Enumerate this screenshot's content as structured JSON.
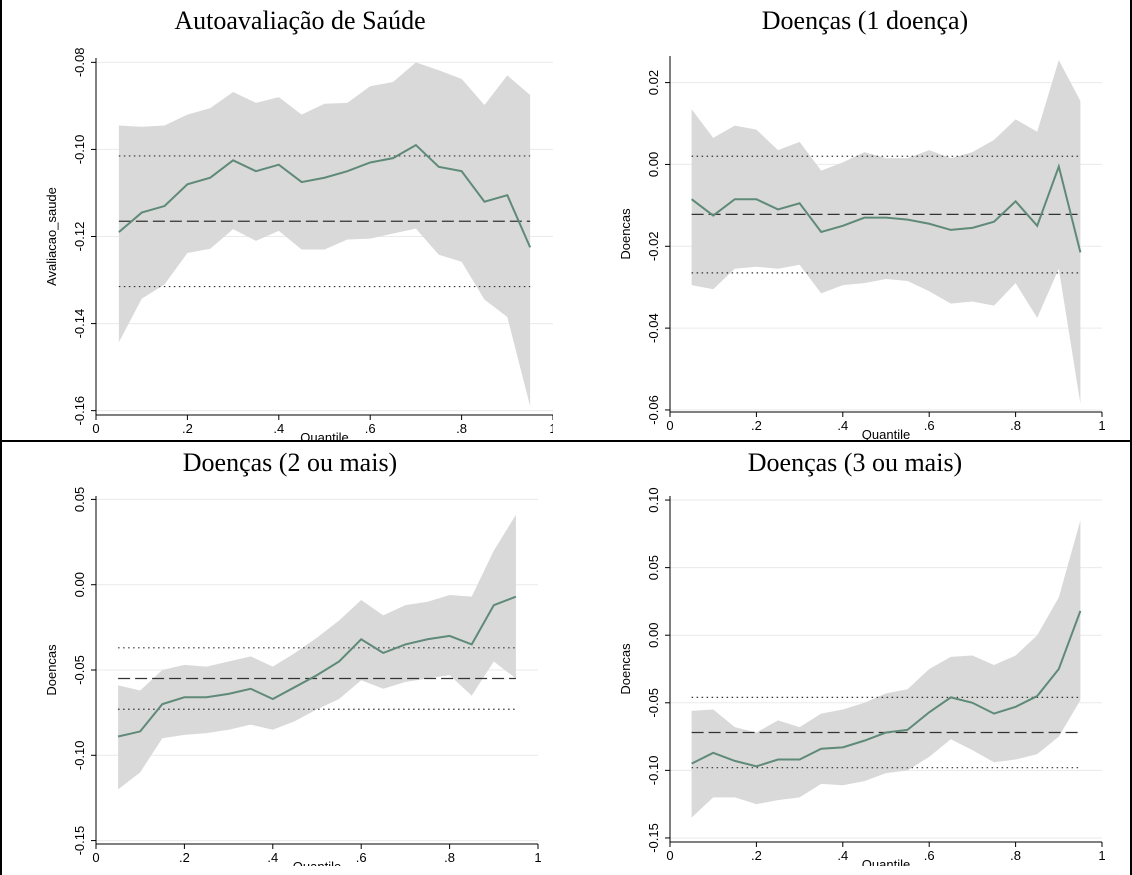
{
  "colors": {
    "band": "#d9d9d9",
    "line": "#5f8a78",
    "ref": "#333333",
    "grid": "#eaeaea",
    "axis": "#000000"
  },
  "chart_data": [
    {
      "type": "line",
      "title": "Autoavaliação de Saúde",
      "xlabel": "Quantile",
      "ylabel": "Avaliacao_saude",
      "xlim": [
        0,
        1
      ],
      "ylim": [
        -0.161,
        -0.079
      ],
      "xticks": [
        0,
        0.2,
        0.4,
        0.6,
        0.8,
        1
      ],
      "xtick_labels": [
        "0",
        ".2",
        ".4",
        ".6",
        ".8",
        "1"
      ],
      "yticks": [
        -0.08,
        -0.1,
        -0.12,
        -0.14,
        -0.16
      ],
      "ytick_labels": [
        "-0.08",
        "-0.10",
        "-0.12",
        "-0.14",
        "-0.16"
      ],
      "grid": true,
      "x": [
        0.05,
        0.1,
        0.15,
        0.2,
        0.25,
        0.3,
        0.35,
        0.4,
        0.45,
        0.5,
        0.55,
        0.6,
        0.65,
        0.7,
        0.75,
        0.8,
        0.85,
        0.9,
        0.95
      ],
      "coef": [
        -0.119,
        -0.1145,
        -0.113,
        -0.108,
        -0.1065,
        -0.1025,
        -0.105,
        -0.1035,
        -0.1075,
        -0.1065,
        -0.105,
        -0.103,
        -0.102,
        -0.099,
        -0.104,
        -0.105,
        -0.112,
        -0.1105,
        -0.1225
      ],
      "upper": [
        -0.0945,
        -0.0948,
        -0.0945,
        -0.092,
        -0.0905,
        -0.0868,
        -0.0893,
        -0.088,
        -0.092,
        -0.0895,
        -0.0893,
        -0.0855,
        -0.0845,
        -0.08,
        -0.0818,
        -0.0838,
        -0.0898,
        -0.083,
        -0.0875
      ],
      "lower": [
        -0.1443,
        -0.1343,
        -0.131,
        -0.1238,
        -0.1228,
        -0.1183,
        -0.121,
        -0.1187,
        -0.123,
        -0.123,
        -0.1207,
        -0.1205,
        -0.1193,
        -0.1182,
        -0.1242,
        -0.1258,
        -0.1345,
        -0.1385,
        -0.159
      ],
      "ols": -0.1165,
      "ols_ci": [
        -0.1315,
        -0.1015
      ]
    },
    {
      "type": "line",
      "title": "Doenças (1 doença)",
      "xlabel": "Quantile",
      "ylabel": "Doencas",
      "xlim": [
        0,
        1
      ],
      "ylim": [
        -0.0605,
        0.0265
      ],
      "xticks": [
        0,
        0.2,
        0.4,
        0.6,
        0.8,
        1
      ],
      "xtick_labels": [
        "0",
        ".2",
        ".4",
        ".6",
        ".8",
        "1"
      ],
      "yticks": [
        0.02,
        0.0,
        -0.02,
        -0.04,
        -0.06
      ],
      "ytick_labels": [
        "0.02",
        "0.00",
        "-0.02",
        "-0.04",
        "-0.06"
      ],
      "grid": true,
      "x": [
        0.05,
        0.1,
        0.15,
        0.2,
        0.25,
        0.3,
        0.35,
        0.4,
        0.45,
        0.5,
        0.55,
        0.6,
        0.65,
        0.7,
        0.75,
        0.8,
        0.85,
        0.9,
        0.95
      ],
      "coef": [
        -0.0085,
        -0.0125,
        -0.0085,
        -0.0085,
        -0.011,
        -0.0095,
        -0.0165,
        -0.015,
        -0.013,
        -0.013,
        -0.0135,
        -0.0145,
        -0.016,
        -0.0155,
        -0.014,
        -0.009,
        -0.015,
        -0.0005,
        -0.0215
      ],
      "upper": [
        0.0135,
        0.0065,
        0.0095,
        0.0085,
        0.0035,
        0.0055,
        -0.0015,
        0.0005,
        0.003,
        0.0015,
        0.0015,
        0.0035,
        0.0015,
        0.003,
        0.006,
        0.011,
        0.008,
        0.0255,
        0.0155
      ],
      "lower": [
        -0.0295,
        -0.0305,
        -0.0255,
        -0.025,
        -0.0255,
        -0.0245,
        -0.0315,
        -0.0295,
        -0.029,
        -0.028,
        -0.0285,
        -0.031,
        -0.034,
        -0.0335,
        -0.0345,
        -0.029,
        -0.0375,
        -0.0255,
        -0.0585
      ],
      "ols": -0.0122,
      "ols_ci": [
        -0.0265,
        0.002
      ]
    },
    {
      "type": "line",
      "title": "Doenças (2 ou mais)",
      "xlabel": "Quantile",
      "ylabel": "Doencas",
      "xlim": [
        0,
        1
      ],
      "ylim": [
        -0.152,
        0.052
      ],
      "xticks": [
        0,
        0.2,
        0.4,
        0.6,
        0.8,
        1
      ],
      "xtick_labels": [
        "0",
        ".2",
        ".4",
        ".6",
        ".8",
        "1"
      ],
      "yticks": [
        0.05,
        0.0,
        -0.05,
        -0.1,
        -0.15
      ],
      "ytick_labels": [
        "0.05",
        "0.00",
        "-0.05",
        "-0.10",
        "-0.15"
      ],
      "grid": true,
      "x": [
        0.05,
        0.1,
        0.15,
        0.2,
        0.25,
        0.3,
        0.35,
        0.4,
        0.45,
        0.5,
        0.55,
        0.6,
        0.65,
        0.7,
        0.75,
        0.8,
        0.85,
        0.9,
        0.95
      ],
      "coef": [
        -0.089,
        -0.086,
        -0.07,
        -0.066,
        -0.066,
        -0.064,
        -0.061,
        -0.067,
        -0.06,
        -0.053,
        -0.045,
        -0.032,
        -0.04,
        -0.035,
        -0.032,
        -0.03,
        -0.035,
        -0.012,
        -0.007
      ],
      "upper": [
        -0.059,
        -0.062,
        -0.05,
        -0.047,
        -0.048,
        -0.045,
        -0.042,
        -0.048,
        -0.04,
        -0.031,
        -0.021,
        -0.009,
        -0.018,
        -0.012,
        -0.01,
        -0.006,
        -0.007,
        0.02,
        0.041
      ],
      "lower": [
        -0.12,
        -0.11,
        -0.09,
        -0.088,
        -0.087,
        -0.085,
        -0.082,
        -0.085,
        -0.08,
        -0.073,
        -0.067,
        -0.056,
        -0.061,
        -0.057,
        -0.055,
        -0.053,
        -0.065,
        -0.045,
        -0.055
      ],
      "ols": -0.055,
      "ols_ci": [
        -0.073,
        -0.037
      ]
    },
    {
      "type": "line",
      "title": "Doenças (3 ou mais)",
      "xlabel": "Quantile",
      "ylabel": "Doencas",
      "xlim": [
        0,
        1
      ],
      "ylim": [
        -0.153,
        0.103
      ],
      "xticks": [
        0,
        0.2,
        0.4,
        0.6,
        0.8,
        1
      ],
      "xtick_labels": [
        "0",
        ".2",
        ".4",
        ".6",
        ".8",
        "1"
      ],
      "yticks": [
        0.1,
        0.05,
        0.0,
        -0.05,
        -0.1,
        -0.15
      ],
      "ytick_labels": [
        "0.10",
        "0.05",
        "0.00",
        "-0.05",
        "-0.10",
        "-0.15"
      ],
      "grid": true,
      "x": [
        0.05,
        0.1,
        0.15,
        0.2,
        0.25,
        0.3,
        0.35,
        0.4,
        0.45,
        0.5,
        0.55,
        0.6,
        0.65,
        0.7,
        0.75,
        0.8,
        0.85,
        0.9,
        0.95
      ],
      "coef": [
        -0.095,
        -0.087,
        -0.093,
        -0.097,
        -0.092,
        -0.092,
        -0.084,
        -0.083,
        -0.078,
        -0.072,
        -0.07,
        -0.057,
        -0.046,
        -0.05,
        -0.058,
        -0.053,
        -0.045,
        -0.025,
        0.018
      ],
      "upper": [
        -0.056,
        -0.055,
        -0.068,
        -0.072,
        -0.063,
        -0.068,
        -0.058,
        -0.055,
        -0.05,
        -0.043,
        -0.04,
        -0.025,
        -0.016,
        -0.015,
        -0.022,
        -0.015,
        0.0,
        0.028,
        0.085
      ],
      "lower": [
        -0.135,
        -0.12,
        -0.12,
        -0.125,
        -0.122,
        -0.12,
        -0.11,
        -0.111,
        -0.108,
        -0.102,
        -0.1,
        -0.09,
        -0.077,
        -0.085,
        -0.094,
        -0.092,
        -0.088,
        -0.075,
        -0.048
      ],
      "ols": -0.072,
      "ols_ci": [
        -0.098,
        -0.046
      ]
    }
  ]
}
